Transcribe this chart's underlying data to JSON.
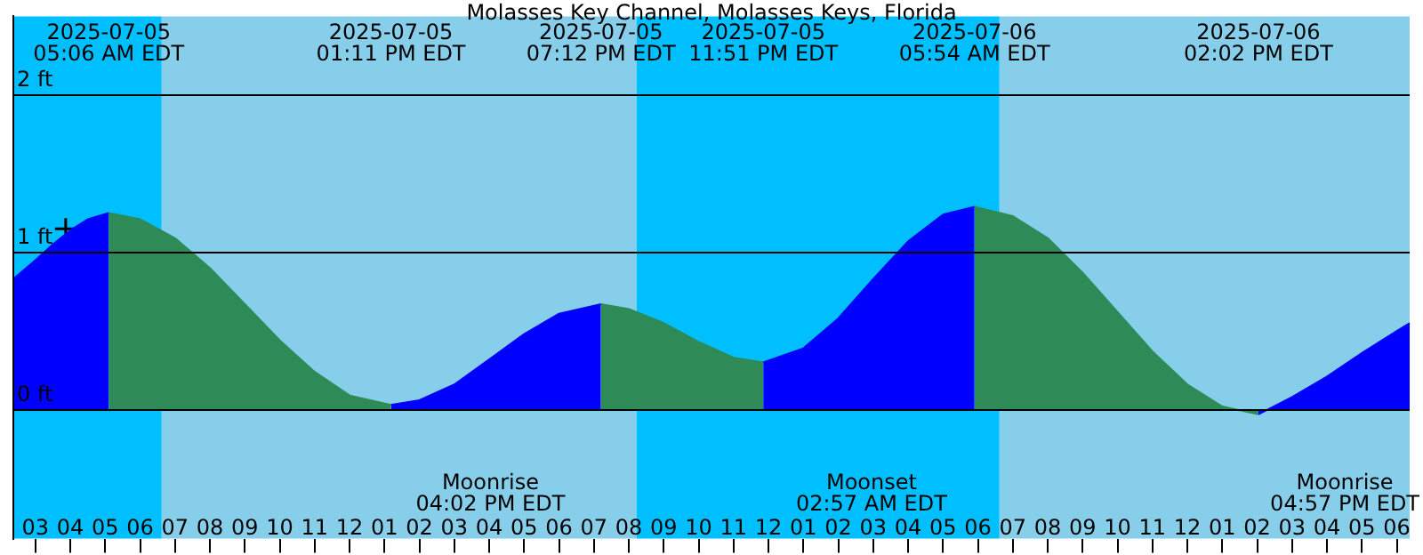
{
  "chart_data": {
    "type": "area",
    "title": "Molasses Key Channel, Molasses Keys, Florida",
    "xlim": [
      "2025-07-05T02:22",
      "2025-07-06T18:22"
    ],
    "ylim": [
      -0.82,
      2.5
    ],
    "yticks": [
      {
        "value": 0,
        "label": "0 ft"
      },
      {
        "value": 1,
        "label": "1 ft"
      },
      {
        "value": 2,
        "label": "2 ft"
      }
    ],
    "xticks": [
      {
        "value": "2025-07-05T03:00",
        "label": "03"
      },
      {
        "value": "2025-07-05T04:00",
        "label": "04"
      },
      {
        "value": "2025-07-05T05:00",
        "label": "05"
      },
      {
        "value": "2025-07-05T06:00",
        "label": "06"
      },
      {
        "value": "2025-07-05T07:00",
        "label": "07"
      },
      {
        "value": "2025-07-05T08:00",
        "label": "08"
      },
      {
        "value": "2025-07-05T09:00",
        "label": "09"
      },
      {
        "value": "2025-07-05T10:00",
        "label": "10"
      },
      {
        "value": "2025-07-05T11:00",
        "label": "11"
      },
      {
        "value": "2025-07-05T12:00",
        "label": "12"
      },
      {
        "value": "2025-07-05T13:00",
        "label": "01"
      },
      {
        "value": "2025-07-05T14:00",
        "label": "02"
      },
      {
        "value": "2025-07-05T15:00",
        "label": "03"
      },
      {
        "value": "2025-07-05T16:00",
        "label": "04"
      },
      {
        "value": "2025-07-05T17:00",
        "label": "05"
      },
      {
        "value": "2025-07-05T18:00",
        "label": "06"
      },
      {
        "value": "2025-07-05T19:00",
        "label": "07"
      },
      {
        "value": "2025-07-05T20:00",
        "label": "08"
      },
      {
        "value": "2025-07-05T21:00",
        "label": "09"
      },
      {
        "value": "2025-07-05T22:00",
        "label": "10"
      },
      {
        "value": "2025-07-05T23:00",
        "label": "11"
      },
      {
        "value": "2025-07-06T00:00",
        "label": "12"
      },
      {
        "value": "2025-07-06T01:00",
        "label": "01"
      },
      {
        "value": "2025-07-06T02:00",
        "label": "02"
      },
      {
        "value": "2025-07-06T03:00",
        "label": "03"
      },
      {
        "value": "2025-07-06T04:00",
        "label": "04"
      },
      {
        "value": "2025-07-06T05:00",
        "label": "05"
      },
      {
        "value": "2025-07-06T06:00",
        "label": "06"
      },
      {
        "value": "2025-07-06T07:00",
        "label": "07"
      },
      {
        "value": "2025-07-06T08:00",
        "label": "08"
      },
      {
        "value": "2025-07-06T09:00",
        "label": "09"
      },
      {
        "value": "2025-07-06T10:00",
        "label": "10"
      },
      {
        "value": "2025-07-06T11:00",
        "label": "11"
      },
      {
        "value": "2025-07-06T12:00",
        "label": "12"
      },
      {
        "value": "2025-07-06T13:00",
        "label": "01"
      },
      {
        "value": "2025-07-06T14:00",
        "label": "02"
      },
      {
        "value": "2025-07-06T15:00",
        "label": "03"
      },
      {
        "value": "2025-07-06T16:00",
        "label": "04"
      },
      {
        "value": "2025-07-06T17:00",
        "label": "05"
      },
      {
        "value": "2025-07-06T18:00",
        "label": "06"
      }
    ],
    "grid": "y",
    "legend": false,
    "bands": [
      {
        "axis": "x",
        "from": "2025-07-05T02:22",
        "to": "2025-07-05T06:37",
        "color": "#00bfff"
      },
      {
        "axis": "x",
        "from": "2025-07-05T06:37",
        "to": "2025-07-05T20:13",
        "color": "#87ceeb"
      },
      {
        "axis": "x",
        "from": "2025-07-05T20:13",
        "to": "2025-07-06T06:37",
        "color": "#00bfff"
      },
      {
        "axis": "x",
        "from": "2025-07-06T06:37",
        "to": "2025-07-06T18:22",
        "color": "#87ceeb"
      }
    ],
    "series": [
      {
        "color": "#0000ff",
        "x": [
          "2025-07-05T02:22",
          "2025-07-05T03:00",
          "2025-07-05T03:30",
          "2025-07-05T04:00",
          "2025-07-05T04:30",
          "2025-07-05T05:06"
        ],
        "values": [
          0.83,
          0.95,
          1.05,
          1.14,
          1.21,
          1.25
        ]
      },
      {
        "color": "#2e8b57",
        "x": [
          "2025-07-05T05:06",
          "2025-07-05T06:00",
          "2025-07-05T07:00",
          "2025-07-05T08:00",
          "2025-07-05T09:00",
          "2025-07-05T10:00",
          "2025-07-05T11:00",
          "2025-07-05T12:00",
          "2025-07-05T13:11"
        ],
        "values": [
          1.25,
          1.21,
          1.09,
          0.9,
          0.67,
          0.44,
          0.24,
          0.09,
          0.03
        ]
      },
      {
        "color": "#0000ff",
        "x": [
          "2025-07-05T13:11",
          "2025-07-05T14:00",
          "2025-07-05T15:00",
          "2025-07-05T16:00",
          "2025-07-05T17:00",
          "2025-07-05T18:00",
          "2025-07-05T19:12"
        ],
        "values": [
          0.03,
          0.06,
          0.16,
          0.32,
          0.48,
          0.61,
          0.67
        ]
      },
      {
        "color": "#2e8b57",
        "x": [
          "2025-07-05T19:12",
          "2025-07-05T20:00",
          "2025-07-05T21:00",
          "2025-07-05T22:00",
          "2025-07-05T23:00",
          "2025-07-05T23:51"
        ],
        "values": [
          0.67,
          0.64,
          0.55,
          0.43,
          0.33,
          0.3
        ]
      },
      {
        "color": "#0000ff",
        "x": [
          "2025-07-05T23:51",
          "2025-07-06T01:00",
          "2025-07-06T02:00",
          "2025-07-06T03:00",
          "2025-07-06T04:00",
          "2025-07-06T05:00",
          "2025-07-06T05:54"
        ],
        "values": [
          0.3,
          0.39,
          0.58,
          0.83,
          1.07,
          1.24,
          1.29
        ]
      },
      {
        "color": "#2e8b57",
        "x": [
          "2025-07-06T05:54",
          "2025-07-06T07:00",
          "2025-07-06T08:00",
          "2025-07-06T09:00",
          "2025-07-06T10:00",
          "2025-07-06T11:00",
          "2025-07-06T12:00",
          "2025-07-06T13:00",
          "2025-07-06T14:02"
        ],
        "values": [
          1.29,
          1.23,
          1.09,
          0.87,
          0.62,
          0.37,
          0.16,
          0.02,
          -0.03
        ]
      },
      {
        "color": "#0000ff",
        "x": [
          "2025-07-06T14:02",
          "2025-07-06T15:00",
          "2025-07-06T16:00",
          "2025-07-06T17:00",
          "2025-07-06T18:00",
          "2025-07-06T18:22"
        ],
        "values": [
          -0.03,
          0.08,
          0.21,
          0.36,
          0.5,
          0.55
        ]
      },
      {
        "type": "scatter",
        "color": "#000000",
        "marker": "cross",
        "x": [
          "2025-07-05T03:52"
        ],
        "values": [
          1.15
        ]
      }
    ],
    "annotations": [
      "2025-07-05\n05:06 AM EDT",
      "2025-07-05\n01:11 PM EDT",
      "2025-07-05\n07:12 PM EDT",
      "2025-07-05\n11:51 PM EDT",
      "2025-07-06\n05:54 AM EDT",
      "2025-07-06\n02:02 PM EDT",
      {
        "text": "Moonrise\n04:02 PM EDT",
        "x": "2025-07-05T16:02"
      },
      {
        "text": "Moonset\n02:57 AM EDT",
        "x": "2025-07-06T02:57"
      },
      "Moonrise\n04:57 PM EDT"
    ]
  }
}
